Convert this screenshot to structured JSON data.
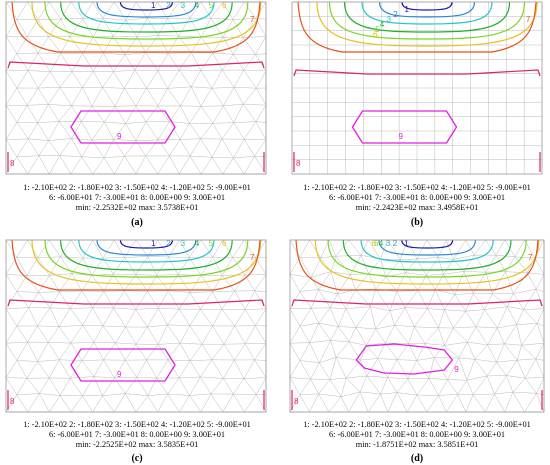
{
  "contour_colors": {
    "1": "#1a1aa8",
    "2": "#2a8ad6",
    "3": "#22c6c6",
    "4": "#22b02e",
    "5": "#7ad620",
    "6": "#e6c21a",
    "7": "#e85018",
    "8": "#dd2266",
    "9": "#e020e0"
  },
  "mesh_color": "#b9b9b9",
  "panels": [
    {
      "id": "a",
      "mesh": "triangular",
      "caption": "(a)",
      "legend_line1": "1: -2.10E+02   2: -1.80E+02   3: -1.50E+02   4: -1.20E+02   5: -9.00E+01",
      "legend_line2": "6: -6.00E+01   7: -3.00E+01   8: 0.00E+00   9: 3.00E+01",
      "legend_line3": "min: -2.2532E+02   max: 3.5738E+01",
      "labels": [
        "1",
        "2",
        "3",
        "4",
        "5",
        "6",
        "7",
        "8",
        "9"
      ]
    },
    {
      "id": "b",
      "mesh": "quad",
      "caption": "(b)",
      "legend_line1": "1: -2.10E+02   2: -1.80E+02   3: -1.50E+02   4: -1.20E+02   5: -9.00E+01",
      "legend_line2": "6: -6.00E+01   7: -3.00E+01   8: 0.00E+00   9: 3.00E+01",
      "legend_line3": "min: -2.2423E+02   max: 3.4958E+01",
      "labels": [
        "1",
        "2",
        "3",
        "4",
        "5",
        "6",
        "7",
        "8",
        "9"
      ]
    },
    {
      "id": "c",
      "mesh": "triangular",
      "caption": "(c)",
      "legend_line1": "1: -2.10E+02   2: -1.80E+02   3: -1.50E+02   4: -1.20E+02   5: -9.00E+01",
      "legend_line2": "6: -6.00E+01   7: -3.00E+01   8: 0.00E+00   9: 3.00E+01",
      "legend_line3": "min: -2.2525E+02   max: 3.5835E+01",
      "labels": [
        "1",
        "2",
        "3",
        "4",
        "5",
        "6",
        "7",
        "8",
        "9"
      ]
    },
    {
      "id": "d",
      "mesh": "irregular",
      "caption": "(d)",
      "legend_line1": "1: -2.10E+02   2: -1.80E+02   3: -1.50E+02   4: -1.20E+02   5: -9.00E+01",
      "legend_line2": "6: -6.00E+01   7: -3.00E+01   8: 0.00E+00   9: 3.00E+01",
      "legend_line3": "min: -1.8751E+02   max: 3.5851E+01",
      "labels": [
        "1",
        "2",
        "3",
        "4",
        "5",
        "6",
        "7",
        "8",
        "9"
      ]
    }
  ]
}
